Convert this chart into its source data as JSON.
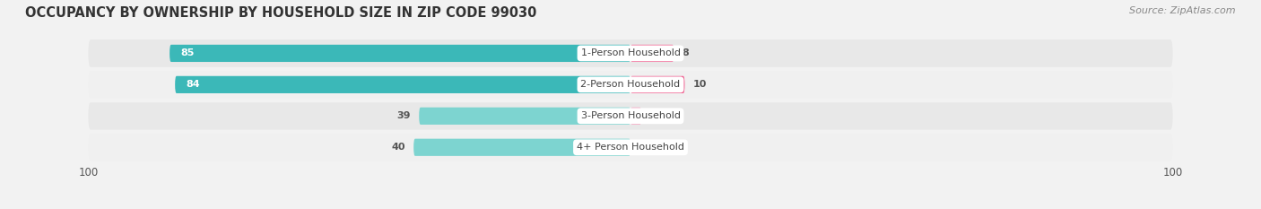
{
  "title": "OCCUPANCY BY OWNERSHIP BY HOUSEHOLD SIZE IN ZIP CODE 99030",
  "source": "Source: ZipAtlas.com",
  "categories": [
    "1-Person Household",
    "2-Person Household",
    "3-Person Household",
    "4+ Person Household"
  ],
  "owner_values": [
    85,
    84,
    39,
    40
  ],
  "renter_values": [
    8,
    10,
    2,
    0
  ],
  "owner_color_large": "#3BB8B8",
  "owner_color_small": "#7DD4D0",
  "renter_color_large": "#F06090",
  "renter_color_small": "#F4A0BE",
  "background_color": "#f2f2f2",
  "row_bg_even": "#e8e8e8",
  "row_bg_odd": "#f0f0f0",
  "max_value": 100,
  "title_fontsize": 10.5,
  "source_fontsize": 8,
  "label_fontsize": 8,
  "tick_fontsize": 8.5,
  "legend_fontsize": 8.5,
  "center_label_color": "#444444"
}
